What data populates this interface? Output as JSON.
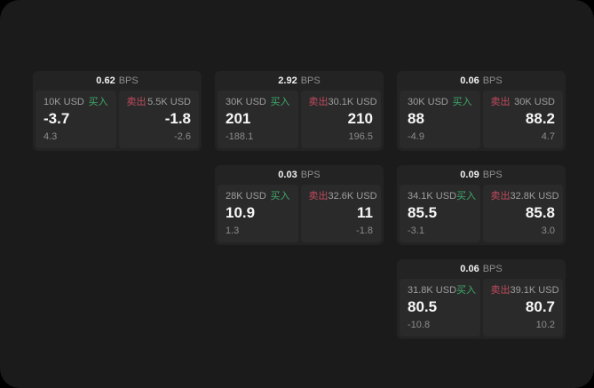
{
  "page": {
    "background": "#000000",
    "panel_background": "#1b1b1c",
    "card_background": "#232324",
    "tile_background": "#2a2a2b"
  },
  "labels": {
    "bps": "BPS",
    "buy": "买入",
    "sell": "卖出"
  },
  "colors": {
    "buy": "#3fa968",
    "sell": "#c04b5c",
    "value_text": "#f7f7f7",
    "muted_text": "#9e9e9e"
  },
  "cards": [
    {
      "bps": "0.62",
      "col": 1,
      "row": 1,
      "buy": {
        "amount": "10K USD",
        "value": "-3.7",
        "delta": "4.3"
      },
      "sell": {
        "amount": "5.5K USD",
        "value": "-1.8",
        "delta": "-2.6"
      }
    },
    {
      "bps": "2.92",
      "col": 2,
      "row": 1,
      "buy": {
        "amount": "30K USD",
        "value": "201",
        "delta": "-188.1"
      },
      "sell": {
        "amount": "30.1K USD",
        "value": "210",
        "delta": "196.5"
      }
    },
    {
      "bps": "0.06",
      "col": 3,
      "row": 1,
      "buy": {
        "amount": "30K USD",
        "value": "88",
        "delta": "-4.9"
      },
      "sell": {
        "amount": "30K USD",
        "value": "88.2",
        "delta": "4.7"
      }
    },
    {
      "bps": "0.03",
      "col": 2,
      "row": 2,
      "buy": {
        "amount": "28K USD",
        "value": "10.9",
        "delta": "1.3"
      },
      "sell": {
        "amount": "32.6K USD",
        "value": "11",
        "delta": "-1.8"
      }
    },
    {
      "bps": "0.09",
      "col": 3,
      "row": 2,
      "buy": {
        "amount": "34.1K USD",
        "value": "85.5",
        "delta": "-3.1"
      },
      "sell": {
        "amount": "32.8K USD",
        "value": "85.8",
        "delta": "3.0"
      }
    },
    {
      "bps": "0.06",
      "col": 3,
      "row": 3,
      "buy": {
        "amount": "31.8K USD",
        "value": "80.5",
        "delta": "-10.8"
      },
      "sell": {
        "amount": "39.1K USD",
        "value": "80.7",
        "delta": "10.2"
      }
    }
  ]
}
